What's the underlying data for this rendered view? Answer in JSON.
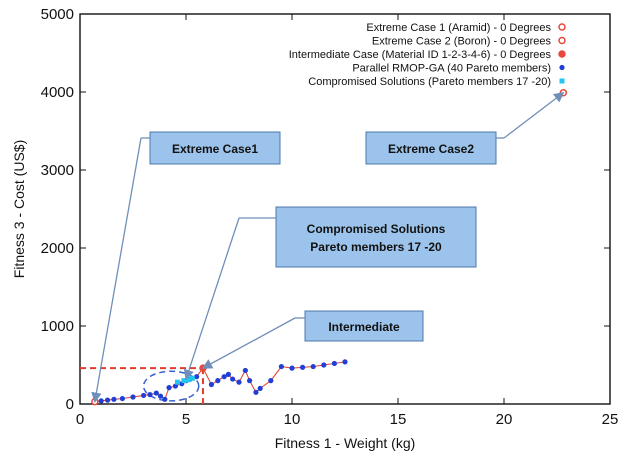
{
  "chart_data": {
    "type": "scatter",
    "xlabel": "Fitness 1 - Weight (kg)",
    "ylabel": "Fitness 3 - Cost (US$)",
    "xlim": [
      0,
      25
    ],
    "ylim": [
      0,
      5000
    ],
    "x_ticks": [
      "0",
      "5",
      "10",
      "15",
      "20",
      "25"
    ],
    "y_ticks": [
      "0",
      "1000",
      "2000",
      "3000",
      "4000",
      "5000"
    ],
    "grid": false,
    "legend_position": "top-right",
    "colors": {
      "extreme1": "#e8473a",
      "extreme2": "#e8473a",
      "intermediate": "#e8473a",
      "pareto": "#1f3fd6",
      "pareto_line": "#e33b2e",
      "compromised": "#22c6ef",
      "callout_fill": "#9cc3eb",
      "callout_stroke": "#4b77ad",
      "arrow": "#6f8fb8",
      "dashed_box": "#e33b2e",
      "ellipse": "#3a5fd0"
    },
    "series": [
      {
        "name": "Extreme Case 1 (Aramid) - 0 Degrees",
        "marker": "open-circle",
        "points": [
          [
            0.7,
            30
          ]
        ]
      },
      {
        "name": "Extreme Case 2 (Boron)   - 0 Degrees",
        "marker": "open-circle",
        "points": [
          [
            22.8,
            3990
          ]
        ]
      },
      {
        "name": "Intermediate Case (Material ID 1-2-3-4-6) - 0 Degrees",
        "marker": "half-circle",
        "points": [
          [
            5.8,
            460
          ]
        ]
      },
      {
        "name": "Parallel RMOP-GA (40 Pareto members)",
        "marker": "dot",
        "points": [
          [
            0.7,
            30
          ],
          [
            1.0,
            40
          ],
          [
            1.3,
            50
          ],
          [
            1.6,
            60
          ],
          [
            2.0,
            70
          ],
          [
            2.5,
            90
          ],
          [
            3.0,
            110
          ],
          [
            3.3,
            120
          ],
          [
            3.6,
            140
          ],
          [
            3.8,
            100
          ],
          [
            4.0,
            60
          ],
          [
            4.2,
            210
          ],
          [
            4.5,
            230
          ],
          [
            4.8,
            260
          ],
          [
            5.0,
            300
          ],
          [
            5.2,
            320
          ],
          [
            5.5,
            350
          ],
          [
            5.8,
            460
          ],
          [
            6.2,
            250
          ],
          [
            6.5,
            300
          ],
          [
            6.8,
            350
          ],
          [
            7.0,
            380
          ],
          [
            7.2,
            320
          ],
          [
            7.5,
            280
          ],
          [
            7.8,
            430
          ],
          [
            8.0,
            300
          ],
          [
            8.3,
            150
          ],
          [
            8.5,
            200
          ],
          [
            9.0,
            300
          ],
          [
            9.5,
            480
          ],
          [
            10.0,
            460
          ],
          [
            10.5,
            470
          ],
          [
            11.0,
            480
          ],
          [
            11.5,
            500
          ],
          [
            12.0,
            520
          ],
          [
            12.5,
            540
          ]
        ]
      },
      {
        "name": "Compromised Solutions (Pareto members 17 -20)",
        "marker": "cross",
        "points": [
          [
            4.6,
            280
          ],
          [
            4.9,
            300
          ],
          [
            5.1,
            310
          ],
          [
            5.3,
            330
          ]
        ]
      }
    ],
    "annotations": [
      {
        "text": "Extreme Case1",
        "target": [
          0.7,
          30
        ]
      },
      {
        "text": "Extreme Case2",
        "target": [
          22.8,
          3990
        ]
      },
      {
        "text": "Compromised Solutions\nPareto members 17 -20",
        "target": [
          5.0,
          320
        ]
      },
      {
        "text": "Intermediate",
        "target": [
          5.8,
          460
        ]
      }
    ],
    "reference_lines": {
      "x": 5.8,
      "y": 460
    },
    "highlight_ellipse": {
      "cx": 4.3,
      "cy": 230,
      "rx": 1.3,
      "ry": 190
    }
  }
}
